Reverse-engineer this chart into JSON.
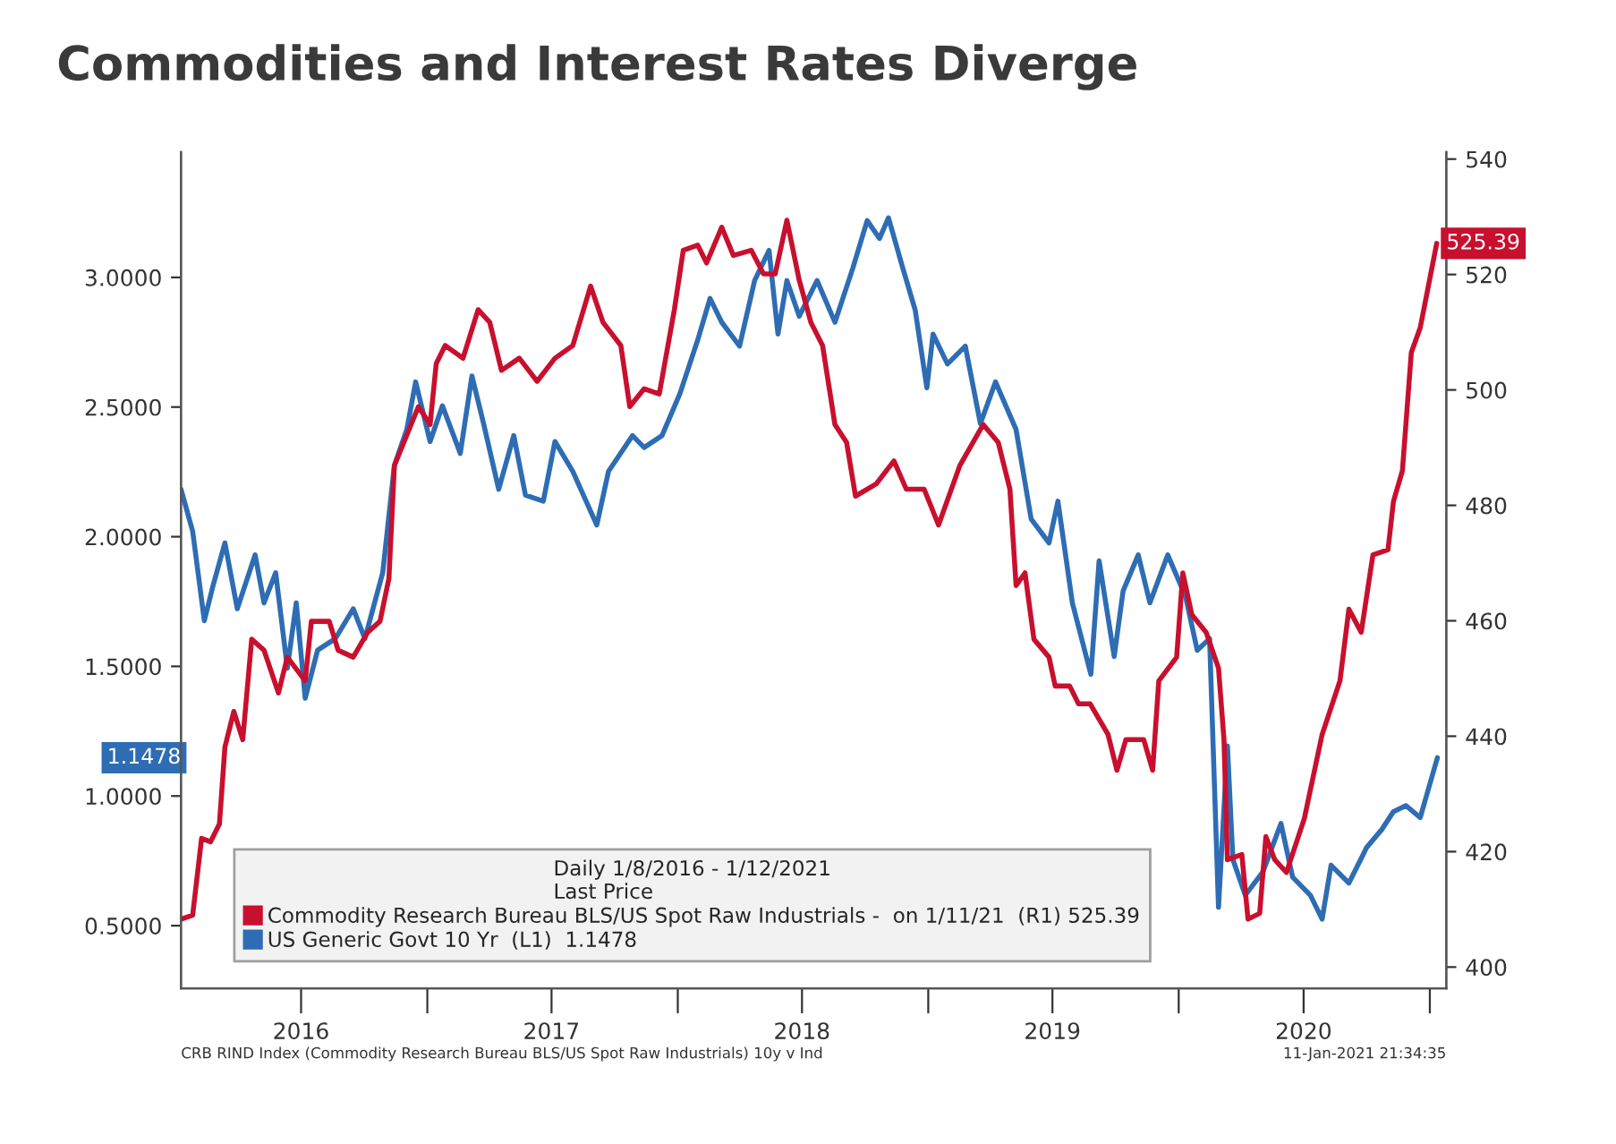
{
  "chart_data": {
    "type": "line",
    "title": "Commodities and Interest Rates Diverge",
    "legend_title": "Daily 1/8/2016 - 1/12/2021\nLast Price",
    "xlim": [
      "2016-01-08",
      "2021-01-25"
    ],
    "xticks": [
      {
        "value": "2016-07-01",
        "label": "2016"
      },
      {
        "value": "2017-01-01",
        "label": null
      },
      {
        "value": "2017-07-01",
        "label": "2017"
      },
      {
        "value": "2018-01-01",
        "label": null
      },
      {
        "value": "2018-07-01",
        "label": "2018"
      },
      {
        "value": "2019-01-01",
        "label": null
      },
      {
        "value": "2019-07-01",
        "label": "2019"
      },
      {
        "value": "2020-01-01",
        "label": null
      },
      {
        "value": "2020-07-01",
        "label": "2020"
      },
      {
        "value": "2021-01-01",
        "label": null
      }
    ],
    "ylim": [
      0.258,
      3.483
    ],
    "yticks": [
      {
        "value": 0.5,
        "label": "0.5000"
      },
      {
        "value": 1.0,
        "label": "1.0000"
      },
      {
        "value": 1.5,
        "label": "1.5000"
      },
      {
        "value": 2.0,
        "label": "2.0000"
      },
      {
        "value": 2.5,
        "label": "2.5000"
      },
      {
        "value": 3.0,
        "label": "3.0000"
      }
    ],
    "y2lim": [
      396.3,
      541.2
    ],
    "y2ticks": [
      400,
      420,
      440,
      460,
      480,
      500,
      520,
      540
    ],
    "grid": false,
    "legend": "bottom",
    "marker": "none",
    "line_style": "solid",
    "series": [
      {
        "name": "Commodity Research Bureau BLS/US Spot Raw Industrials -  on 1/11/21  (R1) 525.39",
        "color": "#c8102e",
        "axis": "y2",
        "x": [
          "2016-01-08",
          "2016-01-25",
          "2016-02-07",
          "2016-02-20",
          "2016-03-04",
          "2016-03-12",
          "2016-03-25",
          "2016-04-07",
          "2016-04-20",
          "2016-05-08",
          "2016-05-29",
          "2016-06-11",
          "2016-07-07",
          "2016-07-16",
          "2016-08-11",
          "2016-08-24",
          "2016-09-15",
          "2016-10-06",
          "2016-10-24",
          "2016-11-06",
          "2016-11-14",
          "2016-12-19",
          "2017-01-05",
          "2017-01-14",
          "2017-01-27",
          "2017-02-22",
          "2017-03-16",
          "2017-04-02",
          "2017-04-19",
          "2017-05-15",
          "2017-06-10",
          "2017-07-06",
          "2017-08-01",
          "2017-08-27",
          "2017-09-14",
          "2017-10-10",
          "2017-10-23",
          "2017-11-13",
          "2017-12-05",
          "2017-12-27",
          "2018-01-09",
          "2018-01-30",
          "2018-02-12",
          "2018-03-06",
          "2018-03-23",
          "2018-04-18",
          "2018-05-06",
          "2018-05-23",
          "2018-06-09",
          "2018-06-27",
          "2018-07-14",
          "2018-07-31",
          "2018-08-18",
          "2018-09-04",
          "2018-09-17",
          "2018-10-17",
          "2018-11-12",
          "2018-11-30",
          "2018-12-26",
          "2019-01-16",
          "2019-02-16",
          "2019-03-22",
          "2019-04-13",
          "2019-04-30",
          "2019-05-09",
          "2019-05-22",
          "2019-06-04",
          "2019-06-26",
          "2019-07-05",
          "2019-07-26",
          "2019-08-08",
          "2019-08-25",
          "2019-09-20",
          "2019-10-03",
          "2019-10-16",
          "2019-11-11",
          "2019-11-24",
          "2019-12-03",
          "2019-12-29",
          "2020-01-07",
          "2020-01-20",
          "2020-02-10",
          "2020-02-28",
          "2020-03-07",
          "2020-03-12",
          "2020-04-02",
          "2020-04-11",
          "2020-04-28",
          "2020-05-07",
          "2020-05-20",
          "2020-06-06",
          "2020-07-02",
          "2020-07-28",
          "2020-08-23",
          "2020-09-05",
          "2020-09-23",
          "2020-10-10",
          "2020-11-01",
          "2020-11-09",
          "2020-11-22",
          "2020-12-05",
          "2020-12-18",
          "2021-01-11"
        ],
        "values": [
          408.3,
          409,
          422.3,
          421.7,
          424.8,
          438.1,
          444.3,
          439.4,
          456.8,
          454.9,
          447.5,
          453.7,
          449.6,
          459.9,
          459.9,
          454.9,
          453.7,
          458,
          459.9,
          467.3,
          486.9,
          497.1,
          494,
          504.6,
          507.7,
          505.5,
          513.9,
          511.7,
          503.4,
          505.5,
          501.5,
          505.5,
          507.7,
          518,
          511.7,
          507.7,
          497.1,
          500.2,
          499.3,
          513.9,
          524.2,
          525.1,
          522,
          528.2,
          523.3,
          524.2,
          520.1,
          520.1,
          529.4,
          519,
          511.7,
          507.7,
          494,
          490.9,
          481.6,
          483.7,
          487.7,
          482.8,
          482.8,
          476.6,
          486.9,
          494,
          490.9,
          482.8,
          466.1,
          468.3,
          456.8,
          453.7,
          448.7,
          448.7,
          445.6,
          445.6,
          440.3,
          434.1,
          439.4,
          439.4,
          434.1,
          449.6,
          453.7,
          468.3,
          461.1,
          458,
          451.8,
          439.4,
          418.6,
          419.5,
          408.3,
          409.3,
          422.6,
          418.6,
          416.4,
          425.7,
          440.3,
          449.6,
          462,
          458,
          471.4,
          472.3,
          480.7,
          486,
          506.5,
          510.8,
          525.39
        ]
      },
      {
        "name": "US Generic Govt 10 Yr  (L1)  1.1478",
        "color": "#2e6db4",
        "x": [
          "2016-01-08",
          "2016-01-25",
          "2016-02-11",
          "2016-02-24",
          "2016-03-12",
          "2016-03-30",
          "2016-04-25",
          "2016-05-08",
          "2016-05-25",
          "2016-06-11",
          "2016-06-24",
          "2016-07-07",
          "2016-07-25",
          "2016-08-20",
          "2016-09-15",
          "2016-10-02",
          "2016-10-28",
          "2016-11-14",
          "2016-12-02",
          "2016-12-15",
          "2017-01-05",
          "2017-01-23",
          "2017-02-18",
          "2017-03-07",
          "2017-03-24",
          "2017-04-15",
          "2017-05-07",
          "2017-05-24",
          "2017-06-19",
          "2017-07-06",
          "2017-08-01",
          "2017-09-05",
          "2017-09-22",
          "2017-10-27",
          "2017-11-13",
          "2017-12-09",
          "2018-01-04",
          "2018-01-30",
          "2018-02-17",
          "2018-03-06",
          "2018-04-01",
          "2018-04-23",
          "2018-05-14",
          "2018-05-27",
          "2018-06-09",
          "2018-06-27",
          "2018-07-23",
          "2018-08-18",
          "2018-09-13",
          "2018-10-04",
          "2018-10-22",
          "2018-11-04",
          "2018-11-25",
          "2018-12-13",
          "2018-12-30",
          "2019-01-08",
          "2019-01-29",
          "2019-02-24",
          "2019-03-18",
          "2019-04-09",
          "2019-05-09",
          "2019-05-31",
          "2019-06-26",
          "2019-07-09",
          "2019-07-30",
          "2019-08-26",
          "2019-09-07",
          "2019-09-29",
          "2019-10-12",
          "2019-11-03",
          "2019-11-20",
          "2019-12-16",
          "2020-01-11",
          "2020-01-28",
          "2020-02-15",
          "2020-02-28",
          "2020-03-12",
          "2020-03-20",
          "2020-04-07",
          "2020-05-03",
          "2020-05-29",
          "2020-06-15",
          "2020-07-11",
          "2020-07-28",
          "2020-08-10",
          "2020-09-05",
          "2020-10-01",
          "2020-10-23",
          "2020-11-09",
          "2020-11-27",
          "2020-12-18",
          "2021-01-12"
        ],
        "values": [
          2.183,
          2.021,
          1.676,
          1.814,
          1.976,
          1.722,
          1.93,
          1.745,
          1.861,
          1.493,
          1.745,
          1.377,
          1.562,
          1.607,
          1.722,
          1.607,
          1.861,
          2.275,
          2.413,
          2.597,
          2.367,
          2.505,
          2.321,
          2.62,
          2.436,
          2.183,
          2.39,
          2.16,
          2.137,
          2.367,
          2.252,
          2.045,
          2.252,
          2.39,
          2.344,
          2.39,
          2.551,
          2.758,
          2.919,
          2.827,
          2.735,
          2.988,
          3.104,
          2.781,
          2.988,
          2.85,
          2.988,
          2.827,
          3.035,
          3.219,
          3.15,
          3.23,
          3.035,
          2.874,
          2.574,
          2.781,
          2.666,
          2.735,
          2.436,
          2.597,
          2.413,
          2.068,
          1.976,
          2.137,
          1.745,
          1.469,
          1.907,
          1.538,
          1.791,
          1.93,
          1.745,
          1.93,
          1.769,
          1.562,
          1.607,
          0.571,
          1.193,
          0.755,
          0.617,
          0.709,
          0.894,
          0.687,
          0.617,
          0.525,
          0.733,
          0.664,
          0.802,
          0.871,
          0.94,
          0.963,
          0.917,
          1.1478
        ]
      }
    ],
    "annotations": [
      "525.39",
      "1.1478",
      "CRB RIND Index (Commodity Research Bureau BLS/US Spot Raw Industrials) 10y v Ind",
      "11-Jan-2021 21:34:35"
    ]
  }
}
